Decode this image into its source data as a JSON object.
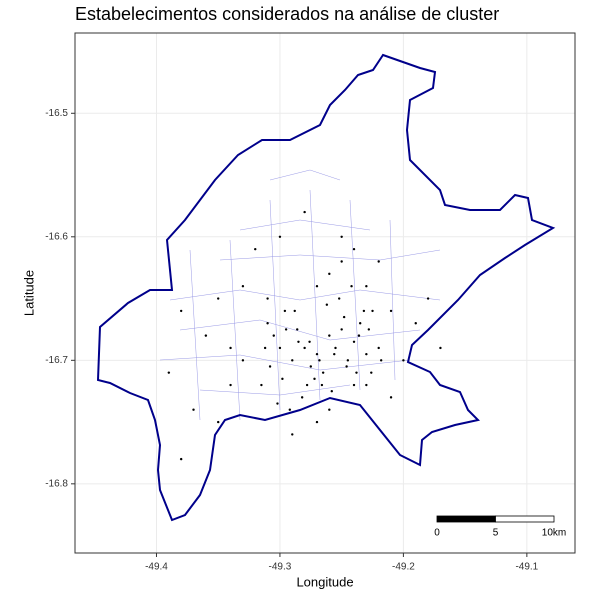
{
  "chart_data": {
    "type": "scatter",
    "title": "Estabelecimentos considerados na análise de cluster",
    "x_label": "Longitude",
    "y_label": "Latitude",
    "xlim": [
      -49.466,
      -49.061
    ],
    "ylim": [
      -16.856,
      -16.435
    ],
    "xticks": [
      -49.4,
      -49.3,
      -49.2,
      -49.1
    ],
    "yticks": [
      -16.5,
      -16.6,
      -16.7,
      -16.8
    ],
    "grid": true,
    "color": "#000000",
    "x": [
      -49.31,
      -49.305,
      -49.3,
      -49.295,
      -49.29,
      -49.285,
      -49.28,
      -49.275,
      -49.27,
      -49.265,
      -49.26,
      -49.255,
      -49.25,
      -49.245,
      -49.24,
      -49.235,
      -49.23,
      -49.225,
      -49.22,
      -49.315,
      -49.308,
      -49.298,
      -49.288,
      -49.278,
      -49.268,
      -49.258,
      -49.248,
      -49.238,
      -49.228,
      -49.218,
      -49.302,
      -49.292,
      -49.282,
      -49.272,
      -49.262,
      -49.252,
      -49.242,
      -49.232,
      -49.312,
      -49.296,
      -49.286,
      -49.276,
      -49.266,
      -49.256,
      -49.246,
      -49.236,
      -49.226,
      -49.33,
      -49.34,
      -49.35,
      -49.36,
      -49.37,
      -49.38,
      -49.39,
      -49.2,
      -49.21,
      -49.19,
      -49.18,
      -49.17,
      -49.25,
      -49.26,
      -49.24,
      -49.3,
      -49.32,
      -49.33,
      -49.27,
      -49.28,
      -49.22,
      -49.23,
      -49.35,
      -49.38,
      -49.29,
      -49.26,
      -49.24,
      -49.21,
      -49.31,
      -49.34,
      -49.27,
      -49.25,
      -49.23
    ],
    "y": [
      -16.67,
      -16.68,
      -16.69,
      -16.675,
      -16.7,
      -16.685,
      -16.69,
      -16.705,
      -16.695,
      -16.71,
      -16.68,
      -16.69,
      -16.675,
      -16.7,
      -16.685,
      -16.67,
      -16.695,
      -16.66,
      -16.69,
      -16.72,
      -16.705,
      -16.715,
      -16.66,
      -16.72,
      -16.7,
      -16.725,
      -16.665,
      -16.71,
      -16.675,
      -16.7,
      -16.735,
      -16.74,
      -16.73,
      -16.715,
      -16.655,
      -16.65,
      -16.64,
      -16.66,
      -16.69,
      -16.66,
      -16.675,
      -16.685,
      -16.72,
      -16.695,
      -16.705,
      -16.68,
      -16.71,
      -16.7,
      -16.72,
      -16.65,
      -16.68,
      -16.74,
      -16.66,
      -16.71,
      -16.7,
      -16.73,
      -16.67,
      -16.65,
      -16.69,
      -16.62,
      -16.63,
      -16.61,
      -16.6,
      -16.61,
      -16.64,
      -16.64,
      -16.58,
      -16.62,
      -16.64,
      -16.75,
      -16.78,
      -16.76,
      -16.74,
      -16.72,
      -16.66,
      -16.65,
      -16.69,
      -16.75,
      -16.6,
      -16.72
    ],
    "scale_bar": {
      "ticks": [
        0,
        5,
        {
          "value": 10,
          "label": "10km"
        }
      ]
    }
  }
}
